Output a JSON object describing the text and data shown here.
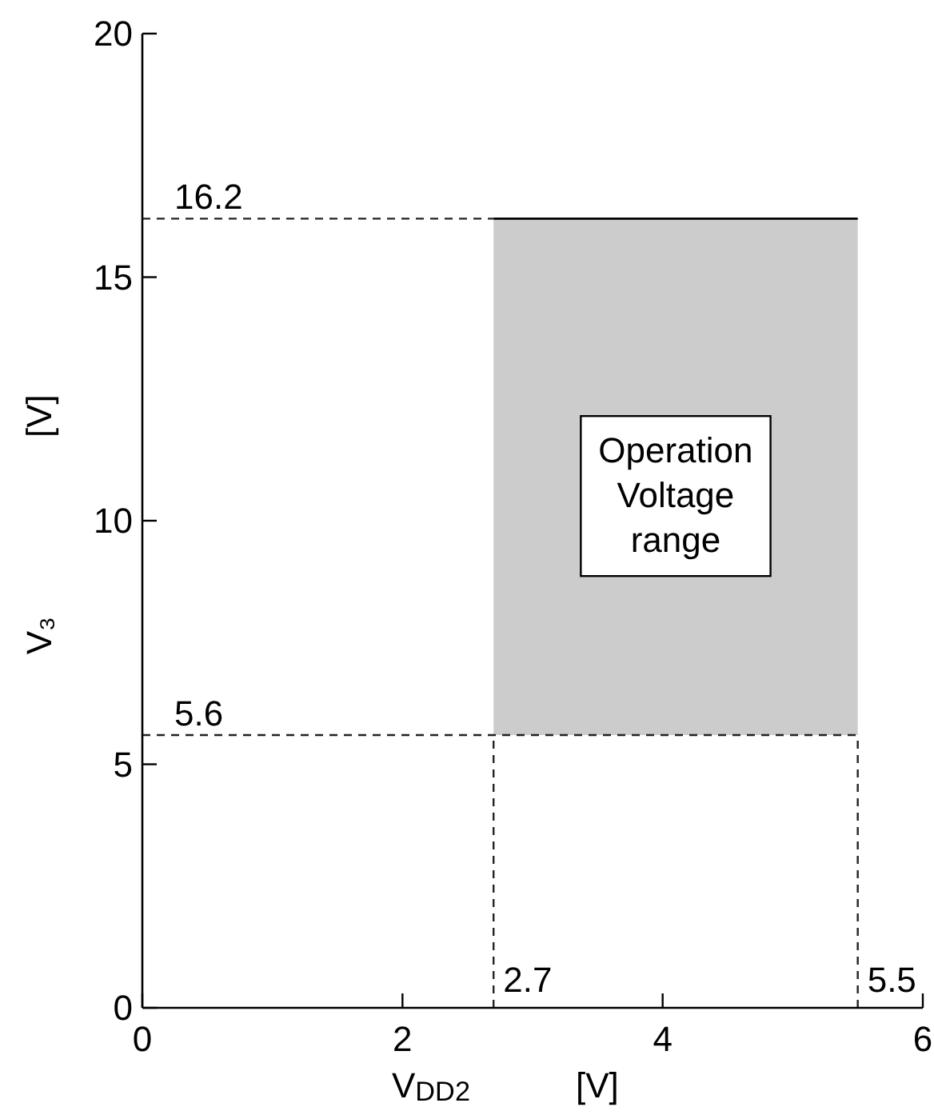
{
  "chart_data": {
    "type": "line",
    "xlabel": "V$_{DD2}$ [V]",
    "ylabel": "V₃ [V]",
    "xlim": [
      0,
      6
    ],
    "ylim": [
      0,
      20
    ],
    "xticks": [
      0,
      2,
      4,
      6
    ],
    "yticks": [
      0,
      5,
      10,
      15,
      20
    ],
    "series": [
      {
        "x": [
          2.7,
          5.5
        ],
        "values": [
          16.2,
          16.2
        ],
        "lower": [
          5.6,
          5.6
        ],
        "upper": [
          16.2,
          16.2
        ],
        "color": "#000000"
      }
    ],
    "ref_lines": [
      {
        "axis": "y",
        "value": 16.2,
        "label": "16.2",
        "line_style": "dashed"
      },
      {
        "axis": "y",
        "value": 5.6,
        "label": "5.6",
        "line_style": "dashed"
      },
      {
        "axis": "x",
        "value": 2.7,
        "label": "2.7",
        "line_style": "dashed"
      },
      {
        "axis": "x",
        "value": 5.5,
        "label": "5.5",
        "line_style": "dashed"
      }
    ],
    "annotations": [
      "Operation Voltage range"
    ]
  }
}
